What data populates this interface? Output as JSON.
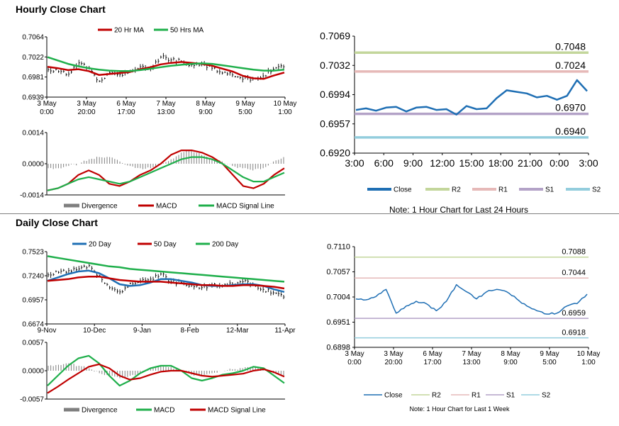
{
  "titles": {
    "hourly": "Hourly Close Chart",
    "daily": "Daily Close Chart"
  },
  "colors": {
    "red": "#C00000",
    "green": "#1FAF4B",
    "blue": "#1F6FB4",
    "gray": "#7F7F7F",
    "close": "#1F6FB4",
    "r2": "#C3D69B",
    "r1": "#E6B9B8",
    "s1": "#B3A2C7",
    "s2": "#93CDDD"
  },
  "chart_data": [
    {
      "id": "hourly_price",
      "type": "line",
      "title": "Hourly Close Chart",
      "ylim": [
        0.6939,
        0.7064
      ],
      "y_ticks": [
        "0.7064",
        "0.7022",
        "0.6981",
        "0.6939"
      ],
      "x_ticks": [
        [
          "3 May",
          "0:00"
        ],
        [
          "3 May",
          "20:00"
        ],
        [
          "6 May",
          "17:00"
        ],
        [
          "7 May",
          "13:00"
        ],
        [
          "8 May",
          "9:00"
        ],
        [
          "9 May",
          "5:00"
        ],
        [
          "10 May",
          "1:00"
        ]
      ],
      "legend": [
        "20 Hr MA",
        "50 Hrs MA"
      ],
      "bars_approx": [
        0.6996,
        0.6992,
        0.6987,
        0.701,
        0.7,
        0.6972,
        0.699,
        0.6986,
        0.6994,
        0.7002,
        0.6998,
        0.7022,
        0.7016,
        0.7013,
        0.7006,
        0.7008,
        0.6999,
        0.6989,
        0.6985,
        0.6976,
        0.6977,
        0.6983,
        0.6997,
        0.7002
      ],
      "ma20_approx": [
        0.7002,
        0.6999,
        0.6995,
        0.6997,
        0.6993,
        0.6985,
        0.6987,
        0.6989,
        0.6991,
        0.6997,
        0.7001,
        0.7007,
        0.701,
        0.7012,
        0.701,
        0.7008,
        0.7004,
        0.6998,
        0.6992,
        0.6983,
        0.6978,
        0.6977,
        0.6984,
        0.699
      ],
      "ma50_approx": [
        0.7022,
        0.7015,
        0.7008,
        0.7003,
        0.6999,
        0.6996,
        0.6994,
        0.6993,
        0.6993,
        0.6995,
        0.6998,
        0.7001,
        0.7004,
        0.7006,
        0.7008,
        0.7009,
        0.7008,
        0.7005,
        0.7002,
        0.6999,
        0.6996,
        0.6994,
        0.6994,
        0.6996
      ]
    },
    {
      "id": "hourly_macd",
      "type": "line",
      "ylim": [
        -0.0014,
        0.0014
      ],
      "y_ticks": [
        "0.0014",
        "0.0000",
        "-0.0014"
      ],
      "legend": [
        "Divergence",
        "MACD",
        "MACD Signal Line"
      ],
      "divergence_approx": [
        -0.0002,
        -0.0002,
        -0.0001,
        0.0,
        0.0002,
        0.0003,
        0.0003,
        0.0001,
        -0.0001,
        -0.0002,
        -0.0002,
        0.0,
        0.0002,
        0.0005,
        0.0006,
        0.0004,
        0.0002,
        0.0001,
        -0.0001,
        -0.0002,
        -0.0003,
        -0.0002,
        0.0001,
        0.0003
      ],
      "macd_approx": [
        -0.0012,
        -0.0011,
        -0.0009,
        -0.0005,
        -0.0003,
        -0.0005,
        -0.0009,
        -0.001,
        -0.0008,
        -0.0005,
        -0.0003,
        0.0,
        0.0004,
        0.0006,
        0.0006,
        0.0005,
        0.0003,
        0.0,
        -0.0005,
        -0.001,
        -0.0011,
        -0.0009,
        -0.0005,
        -0.0002
      ],
      "signal_approx": [
        -0.0012,
        -0.0011,
        -0.0009,
        -0.0007,
        -0.0006,
        -0.0007,
        -0.0008,
        -0.0009,
        -0.0008,
        -0.0006,
        -0.0004,
        -0.0002,
        0.0,
        0.0002,
        0.0003,
        0.0003,
        0.0002,
        0.0,
        -0.0003,
        -0.0006,
        -0.0008,
        -0.0008,
        -0.0006,
        -0.0004
      ]
    },
    {
      "id": "hourly_24h",
      "type": "line",
      "ylim": [
        0.692,
        0.7069
      ],
      "y_ticks": [
        "0.7069",
        "0.7032",
        "0.6994",
        "0.6957",
        "0.6920"
      ],
      "x_ticks": [
        "3:00",
        "6:00",
        "9:00",
        "12:00",
        "15:00",
        "18:00",
        "21:00",
        "0:00",
        "3:00"
      ],
      "levels": [
        {
          "name": "R2",
          "value": 0.7048,
          "label": "0.7048"
        },
        {
          "name": "R1",
          "value": 0.7024,
          "label": "0.7024"
        },
        {
          "name": "S1",
          "value": 0.697,
          "label": "0.6970"
        },
        {
          "name": "S2",
          "value": 0.694,
          "label": "0.6940"
        }
      ],
      "legend": [
        "Close",
        "R2",
        "R1",
        "S1",
        "S2"
      ],
      "close_approx": [
        0.6975,
        0.6977,
        0.6974,
        0.6978,
        0.6979,
        0.6973,
        0.6978,
        0.6979,
        0.6975,
        0.6976,
        0.6969,
        0.698,
        0.6976,
        0.6977,
        0.699,
        0.7,
        0.6998,
        0.6996,
        0.6991,
        0.6993,
        0.6988,
        0.6993,
        0.7013,
        0.6999
      ],
      "note": "Note: 1 Hour Chart for Last 24 Hours"
    },
    {
      "id": "daily_price",
      "type": "line",
      "title": "Daily Close Chart",
      "ylim": [
        0.6674,
        0.7523
      ],
      "y_ticks": [
        "0.7523",
        "0.7240",
        "0.6957",
        "0.6674"
      ],
      "x_ticks": [
        "9-Nov",
        "10-Dec",
        "9-Jan",
        "8-Feb",
        "12-Mar",
        "11-Apr"
      ],
      "legend": [
        "20 Day",
        "50 Day",
        "200 Day"
      ],
      "bars_approx": [
        0.725,
        0.728,
        0.73,
        0.732,
        0.736,
        0.724,
        0.71,
        0.705,
        0.715,
        0.718,
        0.72,
        0.726,
        0.717,
        0.716,
        0.713,
        0.71,
        0.713,
        0.712,
        0.714,
        0.717,
        0.714,
        0.708,
        0.704,
        0.699
      ],
      "ma20_approx": [
        0.718,
        0.722,
        0.726,
        0.729,
        0.73,
        0.727,
        0.721,
        0.714,
        0.712,
        0.713,
        0.716,
        0.72,
        0.72,
        0.718,
        0.716,
        0.713,
        0.712,
        0.712,
        0.713,
        0.714,
        0.714,
        0.712,
        0.708,
        0.705
      ],
      "ma50_approx": [
        0.718,
        0.719,
        0.72,
        0.722,
        0.723,
        0.723,
        0.721,
        0.719,
        0.718,
        0.717,
        0.717,
        0.717,
        0.716,
        0.715,
        0.714,
        0.713,
        0.713,
        0.712,
        0.712,
        0.713,
        0.713,
        0.712,
        0.711,
        0.709
      ],
      "ma200_approx": [
        0.747,
        0.745,
        0.743,
        0.741,
        0.739,
        0.737,
        0.735,
        0.734,
        0.732,
        0.731,
        0.73,
        0.729,
        0.728,
        0.727,
        0.726,
        0.725,
        0.724,
        0.723,
        0.722,
        0.721,
        0.72,
        0.719,
        0.718,
        0.717
      ]
    },
    {
      "id": "daily_macd",
      "type": "line",
      "ylim": [
        -0.0057,
        0.0057
      ],
      "y_ticks": [
        "0.0057",
        "0.0000",
        "-0.0057"
      ],
      "legend": [
        "Divergence",
        "MACD",
        "MACD Signal Line"
      ],
      "divergence_approx": [
        0.001,
        0.0012,
        0.0015,
        0.001,
        0.0005,
        -0.0005,
        -0.001,
        -0.0015,
        -0.001,
        -0.0005,
        0.0005,
        0.001,
        0.0008,
        0.0,
        -0.0008,
        -0.001,
        -0.0005,
        0.0,
        0.0003,
        0.0005,
        0.0008,
        0.0005,
        -0.0005,
        -0.001
      ],
      "macd_approx": [
        -0.003,
        -0.001,
        0.001,
        0.0025,
        0.003,
        0.0015,
        -0.001,
        -0.003,
        -0.002,
        -0.0005,
        0.0005,
        0.001,
        0.001,
        0.0,
        -0.0015,
        -0.002,
        -0.0015,
        -0.0008,
        -0.0005,
        0.0,
        0.0008,
        0.0005,
        -0.001,
        -0.0025
      ],
      "signal_approx": [
        -0.0045,
        -0.0032,
        -0.0018,
        -0.0005,
        0.0008,
        0.0013,
        0.0005,
        -0.001,
        -0.0018,
        -0.0015,
        -0.0008,
        -0.0002,
        0.0,
        0.0,
        -0.0005,
        -0.001,
        -0.0012,
        -0.001,
        -0.0008,
        -0.0006,
        0.0,
        0.0003,
        -0.0003,
        -0.0012
      ]
    },
    {
      "id": "daily_week",
      "type": "line",
      "ylim": [
        0.6898,
        0.711
      ],
      "y_ticks": [
        "0.7110",
        "0.7057",
        "0.7004",
        "0.6951",
        "0.6898"
      ],
      "x_ticks": [
        [
          "3 May",
          "0:00"
        ],
        [
          "3 May",
          "20:00"
        ],
        [
          "6 May",
          "17:00"
        ],
        [
          "7 May",
          "13:00"
        ],
        [
          "8 May",
          "9:00"
        ],
        [
          "9 May",
          "5:00"
        ],
        [
          "10 May",
          "1:00"
        ]
      ],
      "levels": [
        {
          "name": "R2",
          "value": 0.7088,
          "label": "0.7088"
        },
        {
          "name": "R1",
          "value": 0.7044,
          "label": "0.7044"
        },
        {
          "name": "S1",
          "value": 0.6959,
          "label": "0.6959"
        },
        {
          "name": "S2",
          "value": 0.6918,
          "label": "0.6918"
        }
      ],
      "legend": [
        "Close",
        "R2",
        "R1",
        "S1",
        "S2"
      ],
      "close_approx": [
        0.7,
        0.6998,
        0.7005,
        0.702,
        0.697,
        0.6985,
        0.6995,
        0.699,
        0.6975,
        0.6995,
        0.703,
        0.7015,
        0.7,
        0.7015,
        0.702,
        0.7015,
        0.7,
        0.6985,
        0.6975,
        0.6968,
        0.697,
        0.6985,
        0.699,
        0.701
      ],
      "note": "Note: 1 Hour Chart for Last 1 Week"
    }
  ]
}
